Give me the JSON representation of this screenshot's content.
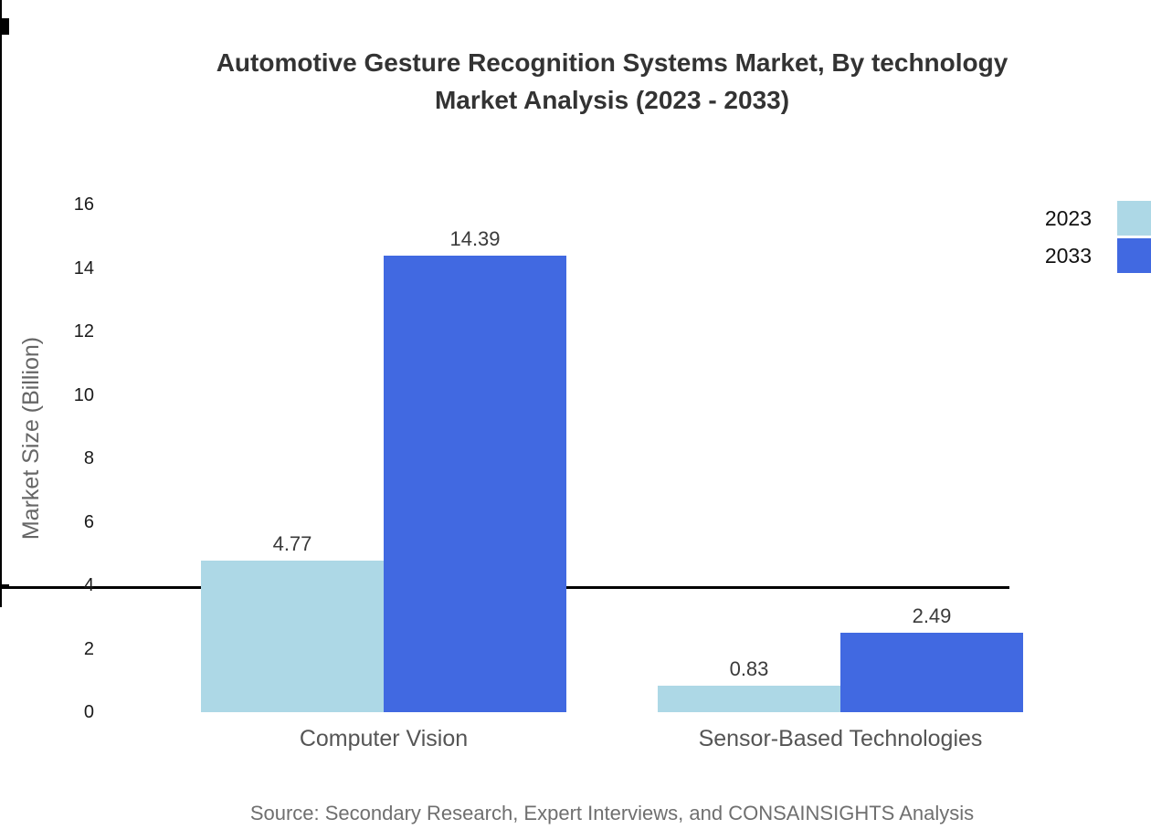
{
  "title": {
    "line1": "Automotive Gesture Recognition Systems Market, By technology",
    "line2": "Market Analysis (2023 - 2033)"
  },
  "chart_data": {
    "type": "bar",
    "categories": [
      "Computer Vision",
      "Sensor-Based Technologies"
    ],
    "series": [
      {
        "name": "2023",
        "color": "#ADD8E6",
        "values": [
          4.77,
          0.83
        ]
      },
      {
        "name": "2033",
        "color": "#4169E1",
        "values": [
          14.39,
          2.49
        ]
      }
    ],
    "title": "Automotive Gesture Recognition Systems Market, By technology Market Analysis (2023 - 2033)",
    "xlabel": "",
    "ylabel": "Market Size (Billion)",
    "ylim": [
      0,
      16
    ],
    "ytick_step": 2,
    "grid": false,
    "legend_position": "top-right",
    "value_labels": [
      "4.77",
      "14.39",
      "0.83",
      "2.49"
    ],
    "axis_color": "#000000"
  },
  "footer": {
    "source": "Source: Secondary Research, Expert Interviews, and CONSAINSIGHTS Analysis"
  }
}
